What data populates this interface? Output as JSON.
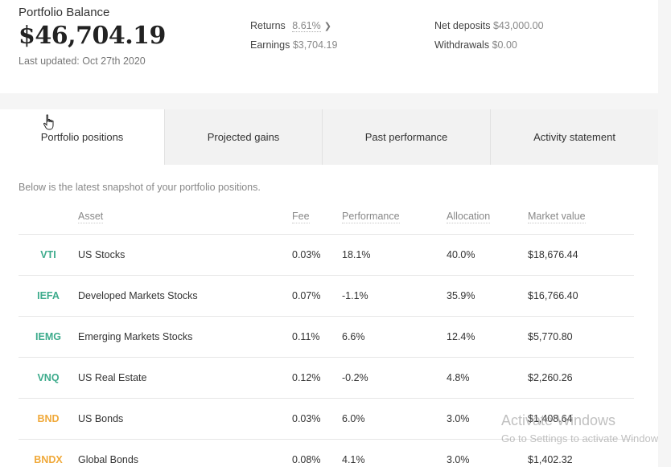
{
  "header": {
    "title": "Portfolio Balance",
    "balance": "$46,704.19",
    "last_updated": "Last updated: Oct 27th 2020",
    "returns_label": "Returns",
    "returns_value": "8.61%",
    "earnings_label": "Earnings",
    "earnings_value": "$3,704.19",
    "net_deposits_label": "Net deposits",
    "net_deposits_value": "$43,000.00",
    "withdrawals_label": "Withdrawals",
    "withdrawals_value": "$0.00"
  },
  "tabs": [
    {
      "label": "Portfolio positions",
      "active": true
    },
    {
      "label": "Projected gains",
      "active": false
    },
    {
      "label": "Past performance",
      "active": false
    },
    {
      "label": "Activity statement",
      "active": false
    }
  ],
  "positions": {
    "intro": "Below is the latest snapshot of your portfolio positions.",
    "columns": {
      "asset": "Asset",
      "fee": "Fee",
      "performance": "Performance",
      "allocation": "Allocation",
      "market_value": "Market value"
    },
    "rows": [
      {
        "ticker": "VTI",
        "asset": "US Stocks",
        "fee": "0.03%",
        "performance": "18.1%",
        "allocation": "40.0%",
        "market_value": "$18,676.44",
        "color": "#3dab8c"
      },
      {
        "ticker": "IEFA",
        "asset": "Developed Markets Stocks",
        "fee": "0.07%",
        "performance": "-1.1%",
        "allocation": "35.9%",
        "market_value": "$16,766.40",
        "color": "#3dab8c"
      },
      {
        "ticker": "IEMG",
        "asset": "Emerging Markets Stocks",
        "fee": "0.11%",
        "performance": "6.6%",
        "allocation": "12.4%",
        "market_value": "$5,770.80",
        "color": "#3dab8c"
      },
      {
        "ticker": "VNQ",
        "asset": "US Real Estate",
        "fee": "0.12%",
        "performance": "-0.2%",
        "allocation": "4.8%",
        "market_value": "$2,260.26",
        "color": "#3dab8c"
      },
      {
        "ticker": "BND",
        "asset": "US Bonds",
        "fee": "0.03%",
        "performance": "6.0%",
        "allocation": "3.0%",
        "market_value": "$1,408.64",
        "color": "#f0a93a"
      },
      {
        "ticker": "BNDX",
        "asset": "Global Bonds",
        "fee": "0.08%",
        "performance": "4.1%",
        "allocation": "3.0%",
        "market_value": "$1,402.32",
        "color": "#f0a93a"
      }
    ]
  },
  "watermark": {
    "line1": "Activate Windows",
    "line2": "Go to Settings to activate Windows."
  }
}
